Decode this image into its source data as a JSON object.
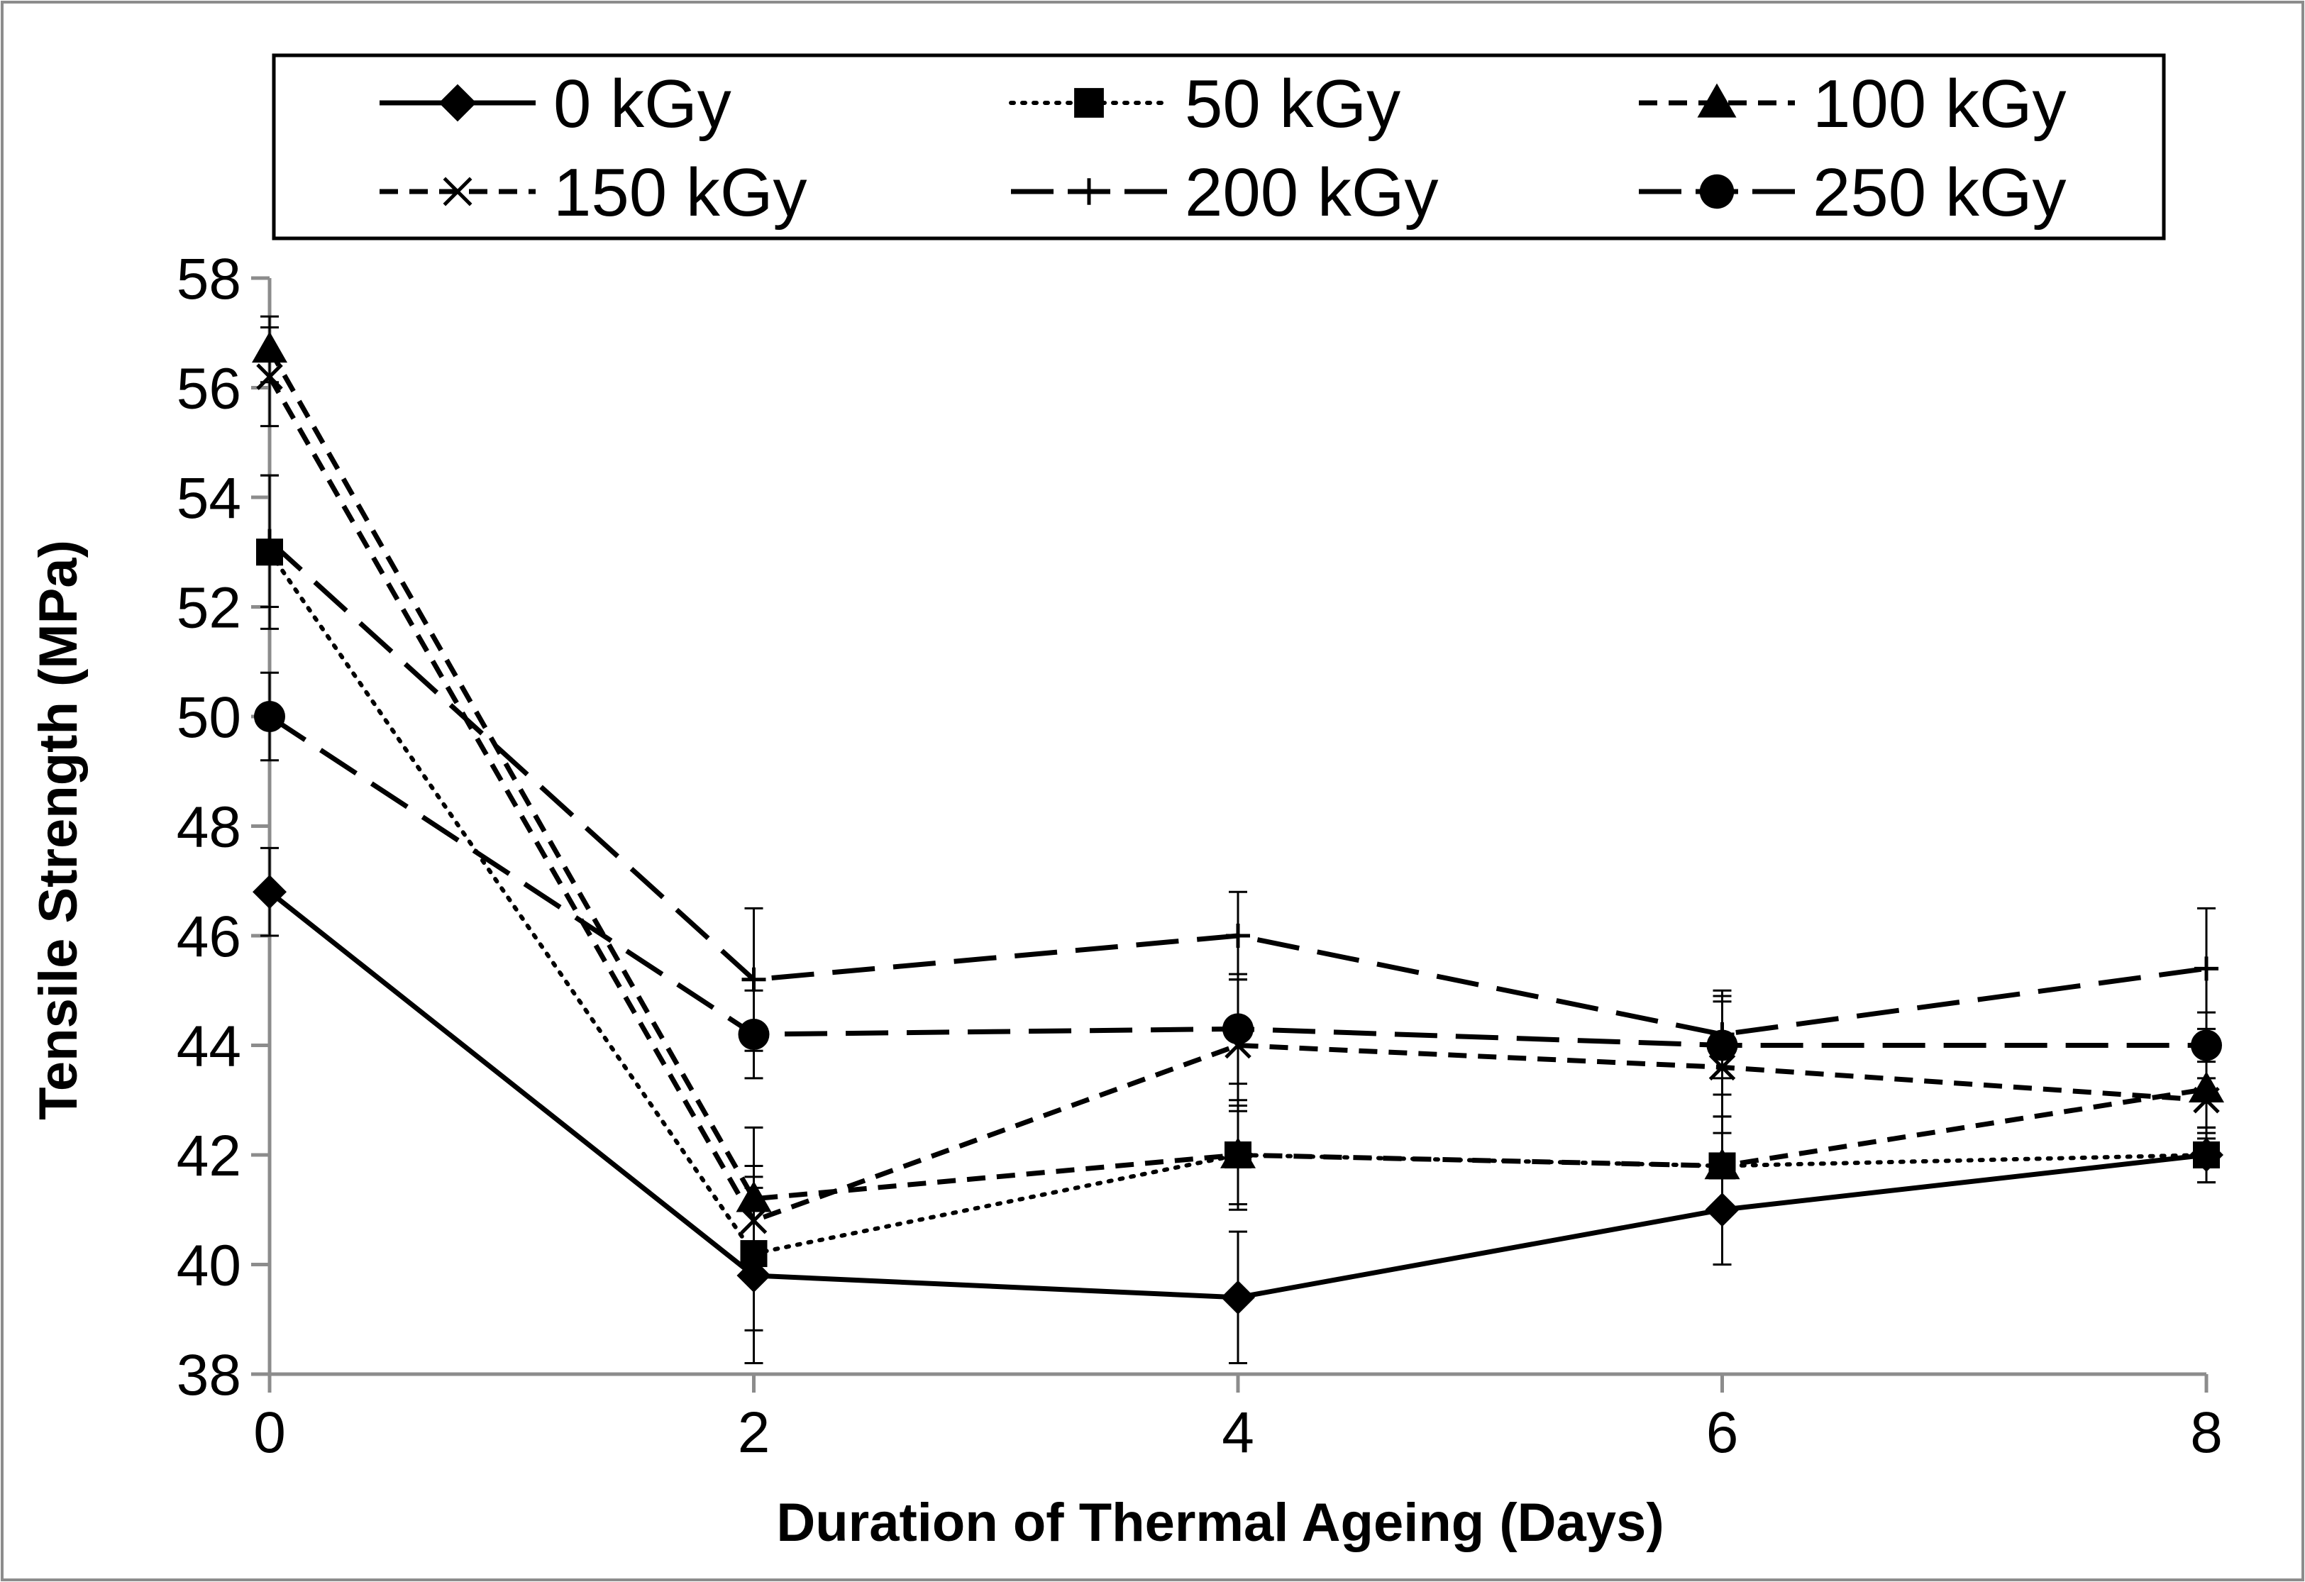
{
  "chart_data": {
    "type": "line",
    "title": "",
    "xlabel": "Duration of Thermal Ageing (Days)",
    "ylabel": "Tensile Strength (MPa)",
    "x": [
      0,
      2,
      4,
      6,
      8
    ],
    "xlim": [
      0,
      8
    ],
    "ylim": [
      38,
      58
    ],
    "xticks": [
      "0",
      "2",
      "4",
      "6",
      "8"
    ],
    "yticks": [
      "38",
      "40",
      "42",
      "44",
      "46",
      "48",
      "50",
      "52",
      "54",
      "56",
      "58"
    ],
    "grid": false,
    "legend_position": "top",
    "series": [
      {
        "name": "0 kGy",
        "values": [
          46.8,
          39.8,
          39.4,
          41.0,
          42.0
        ],
        "errors": [
          0.8,
          1.6,
          1.2,
          1.0,
          0.5
        ],
        "line": "solid",
        "marker": "diamond"
      },
      {
        "name": "50 kGy",
        "values": [
          53.0,
          40.2,
          42.0,
          41.8,
          42.0
        ],
        "errors": [
          1.4,
          1.4,
          0.9,
          0.9,
          0.5
        ],
        "line": "dotted",
        "marker": "square"
      },
      {
        "name": "100 kGy",
        "values": [
          56.7,
          41.2,
          42.0,
          41.8,
          43.2
        ],
        "errors": [
          0.6,
          1.3,
          1.0,
          0.9,
          0.8
        ],
        "line": "dashed",
        "marker": "triangle"
      },
      {
        "name": "150 kGy",
        "values": [
          56.2,
          40.8,
          44.0,
          43.6,
          43.0
        ],
        "errors": [
          0.9,
          1.0,
          1.2,
          1.2,
          0.7
        ],
        "line": "dashed",
        "marker": "x"
      },
      {
        "name": "200 kGy",
        "values": [
          53.2,
          45.2,
          46.0,
          44.2,
          45.4
        ],
        "errors": [
          1.2,
          1.3,
          0.8,
          0.8,
          1.1
        ],
        "line": "longdash",
        "marker": "plus"
      },
      {
        "name": "250 kGy",
        "values": [
          50.0,
          44.2,
          44.3,
          44.0,
          44.0
        ],
        "errors": [
          0.8,
          0.8,
          1.0,
          0.9,
          0.6
        ],
        "line": "longdash",
        "marker": "circle"
      }
    ]
  }
}
